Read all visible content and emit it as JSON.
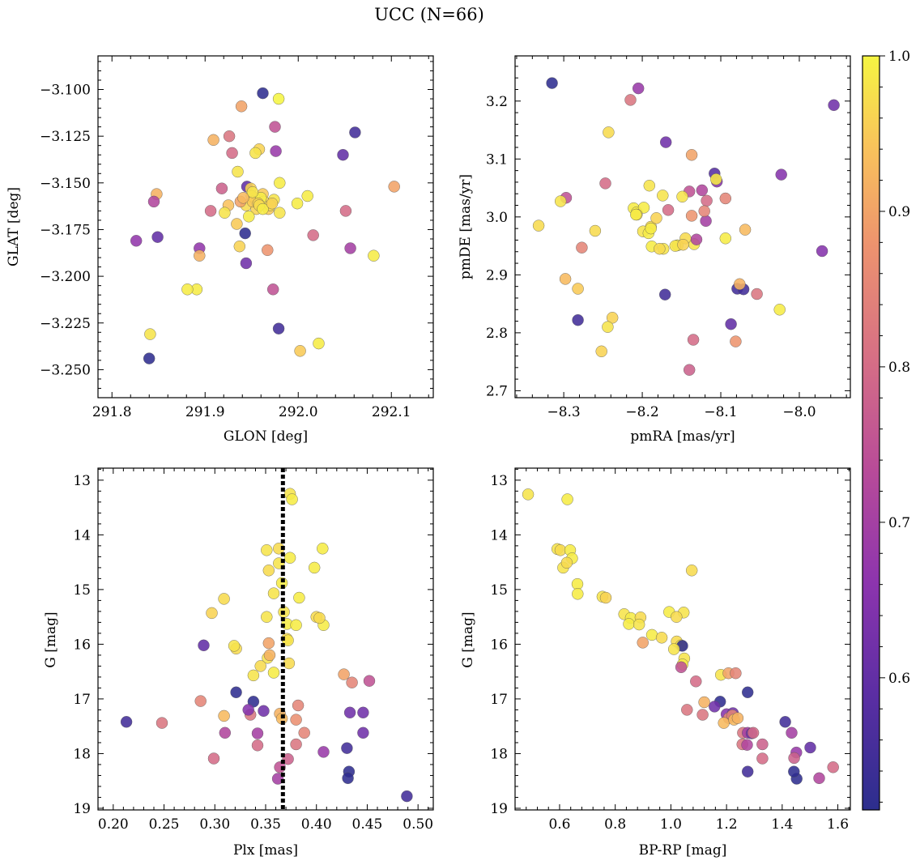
{
  "figure": {
    "title": "UCC (N=66)"
  },
  "colorbar": {
    "cmap": "plasma",
    "vmin": 0.515,
    "vmax": 1.0,
    "ticks": [
      0.6,
      0.7,
      0.8,
      0.9,
      1.0
    ],
    "tick_labels": [
      "0.6",
      "0.7",
      "0.8",
      "0.9",
      "1.0"
    ]
  },
  "chart_data": [
    {
      "type": "scatter",
      "id": "glon-glat",
      "xlabel": "GLON [deg]",
      "ylabel": "GLAT [deg]",
      "xlim": [
        291.785,
        292.145
      ],
      "ylim": [
        -3.265,
        -3.082
      ],
      "y_inverted": false,
      "xticks": [
        291.8,
        291.9,
        292.0,
        292.1
      ],
      "xtick_labels": [
        "291.8",
        "291.9",
        "292.0",
        "292.1"
      ],
      "yticks": [
        -3.1,
        -3.125,
        -3.15,
        -3.175,
        -3.2,
        -3.225,
        -3.25
      ],
      "ytick_labels": [
        "−3.100",
        "−3.125",
        "−3.150",
        "−3.175",
        "−3.200",
        "−3.225",
        "−3.250"
      ],
      "x": [
        291.962,
        291.979,
        291.939,
        291.975,
        291.909,
        291.926,
        291.976,
        291.929,
        291.958,
        291.954,
        291.935,
        291.98,
        291.918,
        291.962,
        291.945,
        292.048,
        292.061,
        291.949,
        292.01,
        291.848,
        291.845,
        291.953,
        291.963,
        291.944,
        291.925,
        291.938,
        291.955,
        291.968,
        291.974,
        291.999,
        292.103,
        291.97,
        291.906,
        291.947,
        292.051,
        291.98,
        291.826,
        291.849,
        291.894,
        291.937,
        291.894,
        291.967,
        292.016,
        292.056,
        291.943,
        291.944,
        291.891,
        292.081,
        291.973,
        291.881,
        291.841,
        292.022,
        292.002,
        291.84,
        291.979,
        291.95,
        291.951,
        291.96,
        291.951,
        291.921,
        291.957,
        291.958,
        291.941,
        291.962,
        291.972,
        291.934
      ],
      "y": [
        -3.102,
        -3.105,
        -3.109,
        -3.12,
        -3.127,
        -3.125,
        -3.133,
        -3.134,
        -3.132,
        -3.134,
        -3.144,
        -3.15,
        -3.153,
        -3.156,
        -3.152,
        -3.135,
        -3.123,
        -3.153,
        -3.157,
        -3.156,
        -3.16,
        -3.158,
        -3.16,
        -3.162,
        -3.162,
        -3.16,
        -3.164,
        -3.164,
        -3.159,
        -3.161,
        -3.152,
        -3.162,
        -3.165,
        -3.168,
        -3.165,
        -3.166,
        -3.181,
        -3.179,
        -3.185,
        -3.184,
        -3.189,
        -3.186,
        -3.178,
        -3.185,
        -3.177,
        -3.193,
        -3.207,
        -3.189,
        -3.207,
        -3.207,
        -3.231,
        -3.236,
        -3.24,
        -3.244,
        -3.228,
        -3.157,
        -3.16,
        -3.158,
        -3.155,
        -3.166,
        -3.161,
        -3.162,
        -3.158,
        -3.164,
        -3.161,
        -3.172
      ],
      "c": [
        0.52,
        1.0,
        0.9,
        0.75,
        0.92,
        0.82,
        0.68,
        0.8,
        0.96,
        0.98,
        0.98,
        0.99,
        0.78,
        0.95,
        0.6,
        0.6,
        0.55,
        0.96,
        0.99,
        0.92,
        0.72,
        0.98,
        0.97,
        0.97,
        0.94,
        0.9,
        0.96,
        0.95,
        0.98,
        0.99,
        0.9,
        0.97,
        0.8,
        0.99,
        0.8,
        0.98,
        0.67,
        0.6,
        0.67,
        0.96,
        0.92,
        0.88,
        0.8,
        0.7,
        0.52,
        0.62,
        0.99,
        0.99,
        0.75,
        0.99,
        0.98,
        0.99,
        0.95,
        0.52,
        0.55,
        0.97,
        0.95,
        0.99,
        0.98,
        0.98,
        0.96,
        0.97,
        0.93,
        0.99,
        0.96,
        0.95
      ]
    },
    {
      "type": "scatter",
      "id": "pm",
      "xlabel": "pmRA [mas/yr]",
      "ylabel": "pmDE [mas/yr]",
      "xlim": [
        -8.362,
        -7.935
      ],
      "ylim": [
        2.688,
        3.278
      ],
      "y_inverted": false,
      "xticks": [
        -8.3,
        -8.2,
        -8.1,
        -8.0
      ],
      "xtick_labels": [
        "−8.3",
        "−8.2",
        "−8.1",
        "−8.0"
      ],
      "yticks": [
        2.7,
        2.8,
        2.9,
        3.0,
        3.1,
        3.2
      ],
      "ytick_labels": [
        "2.7",
        "2.8",
        "2.9",
        "3.0",
        "3.1",
        "3.2"
      ],
      "x": [
        -8.315,
        -8.205,
        -8.215,
        -8.17,
        -8.243,
        -8.137,
        -7.956,
        -8.108,
        -8.105,
        -8.247,
        -8.124,
        -8.094,
        -8.023,
        -8.14,
        -8.118,
        -8.332,
        -8.297,
        -8.211,
        -8.207,
        -8.198,
        -8.174,
        -8.191,
        -8.189,
        -8.149,
        -8.199,
        -8.182,
        -8.207,
        -8.137,
        -8.119,
        -8.121,
        -8.155,
        -8.106,
        -8.188,
        -8.26,
        -8.134,
        -8.145,
        -8.173,
        -8.158,
        -8.192,
        -8.131,
        -8.277,
        -8.094,
        -8.069,
        -7.971,
        -8.079,
        -8.071,
        -8.298,
        -8.282,
        -8.304,
        -8.076,
        -8.054,
        -8.025,
        -8.171,
        -8.238,
        -8.244,
        -8.087,
        -8.282,
        -8.252,
        -8.135,
        -8.081,
        -8.14,
        -8.208,
        -8.189,
        -8.167,
        -8.178,
        -8.148
      ],
      "y": [
        3.231,
        3.222,
        3.202,
        3.129,
        3.146,
        3.107,
        3.193,
        3.075,
        3.061,
        3.058,
        3.046,
        3.032,
        3.073,
        3.044,
        3.028,
        2.985,
        3.033,
        3.015,
        3.008,
        3.016,
        3.037,
        3.054,
        2.983,
        3.035,
        2.975,
        2.998,
        3.004,
        3.002,
        2.993,
        3.01,
        2.951,
        3.065,
        2.949,
        2.976,
        2.953,
        2.963,
        2.945,
        2.95,
        2.972,
        2.961,
        2.947,
        2.963,
        2.978,
        2.941,
        2.876,
        2.875,
        2.893,
        2.876,
        3.027,
        2.884,
        2.867,
        2.84,
        2.866,
        2.826,
        2.81,
        2.815,
        2.822,
        2.768,
        2.788,
        2.785,
        2.736,
        3.004,
        2.98,
        3.012,
        2.945,
        2.952
      ],
      "c": [
        0.52,
        0.68,
        0.82,
        0.62,
        0.97,
        0.9,
        0.62,
        0.58,
        0.65,
        0.8,
        0.72,
        0.85,
        0.65,
        0.75,
        0.8,
        0.97,
        0.75,
        0.99,
        0.99,
        0.99,
        0.98,
        0.98,
        0.97,
        0.98,
        0.98,
        0.96,
        0.97,
        0.88,
        0.7,
        0.85,
        0.99,
        0.99,
        0.99,
        0.97,
        0.98,
        0.97,
        0.98,
        0.98,
        0.99,
        0.72,
        0.85,
        0.99,
        0.93,
        0.65,
        0.55,
        0.55,
        0.93,
        0.95,
        0.98,
        0.92,
        0.82,
        0.99,
        0.55,
        0.96,
        0.98,
        0.6,
        0.55,
        0.96,
        0.8,
        0.88,
        0.78,
        0.99,
        0.99,
        0.8,
        0.97,
        0.96
      ]
    },
    {
      "type": "scatter",
      "id": "plx-g",
      "xlabel": "Plx [mas]",
      "ylabel": "G [mag]",
      "xlim": [
        0.185,
        0.515
      ],
      "ylim": [
        12.78,
        19.03
      ],
      "y_inverted": true,
      "xticks": [
        0.2,
        0.25,
        0.3,
        0.35,
        0.4,
        0.45,
        0.5
      ],
      "xtick_labels": [
        "0.20",
        "0.25",
        "0.30",
        "0.35",
        "0.40",
        "0.45",
        "0.50"
      ],
      "yticks": [
        13,
        14,
        15,
        16,
        17,
        18,
        19
      ],
      "ytick_labels": [
        "13",
        "14",
        "15",
        "16",
        "17",
        "18",
        "19"
      ],
      "ref_line": {
        "x": 0.367,
        "style": "dotted",
        "color": "#000000"
      },
      "x": [
        0.374,
        0.376,
        0.351,
        0.363,
        0.374,
        0.406,
        0.363,
        0.353,
        0.366,
        0.398,
        0.309,
        0.368,
        0.297,
        0.358,
        0.371,
        0.4,
        0.383,
        0.351,
        0.371,
        0.38,
        0.372,
        0.407,
        0.403,
        0.289,
        0.321,
        0.353,
        0.319,
        0.352,
        0.345,
        0.358,
        0.338,
        0.427,
        0.435,
        0.452,
        0.321,
        0.382,
        0.338,
        0.286,
        0.433,
        0.364,
        0.446,
        0.213,
        0.248,
        0.309,
        0.335,
        0.366,
        0.38,
        0.333,
        0.388,
        0.31,
        0.342,
        0.38,
        0.342,
        0.43,
        0.446,
        0.407,
        0.299,
        0.372,
        0.364,
        0.362,
        0.432,
        0.431,
        0.489,
        0.348,
        0.373,
        0.354
      ],
      "y": [
        13.25,
        13.35,
        14.28,
        14.25,
        14.42,
        14.25,
        14.52,
        14.65,
        14.88,
        14.6,
        15.17,
        15.41,
        15.43,
        15.07,
        15.63,
        15.5,
        15.15,
        15.5,
        15.9,
        15.65,
        15.93,
        15.65,
        15.52,
        16.02,
        16.08,
        15.98,
        16.03,
        16.25,
        16.4,
        16.52,
        16.57,
        16.55,
        16.7,
        16.67,
        16.88,
        17.12,
        17.05,
        17.04,
        17.25,
        17.27,
        17.25,
        17.42,
        17.44,
        17.31,
        17.29,
        17.36,
        17.38,
        17.2,
        17.62,
        17.62,
        17.63,
        17.83,
        17.85,
        17.9,
        17.62,
        17.97,
        18.09,
        18.1,
        18.25,
        18.46,
        18.33,
        18.45,
        18.78,
        17.22,
        16.35,
        16.2
      ],
      "c": [
        0.98,
        0.99,
        0.98,
        0.97,
        0.99,
        0.99,
        0.98,
        0.97,
        0.99,
        0.99,
        0.97,
        0.98,
        0.96,
        0.98,
        0.99,
        0.97,
        0.99,
        0.98,
        0.97,
        0.99,
        0.98,
        0.99,
        0.97,
        0.6,
        0.97,
        0.9,
        0.98,
        0.98,
        0.97,
        0.99,
        0.98,
        0.9,
        0.85,
        0.75,
        0.52,
        0.85,
        0.52,
        0.85,
        0.62,
        0.92,
        0.62,
        0.55,
        0.82,
        0.93,
        0.82,
        0.93,
        0.87,
        0.65,
        0.85,
        0.72,
        0.7,
        0.82,
        0.8,
        0.55,
        0.62,
        0.68,
        0.8,
        0.78,
        0.75,
        0.7,
        0.52,
        0.52,
        0.55,
        0.62,
        0.97,
        0.92
      ]
    },
    {
      "type": "scatter",
      "id": "bprp-g",
      "xlabel": "BP-RP [mag]",
      "ylabel": "G [mag]",
      "xlim": [
        0.44,
        1.645
      ],
      "ylim": [
        12.78,
        19.03
      ],
      "y_inverted": true,
      "xticks": [
        0.6,
        0.8,
        1.0,
        1.2,
        1.4,
        1.6
      ],
      "xtick_labels": [
        "0.6",
        "0.8",
        "1.0",
        "1.2",
        "1.4",
        "1.6"
      ],
      "yticks": [
        13,
        14,
        15,
        16,
        17,
        18,
        19
      ],
      "ytick_labels": [
        "13",
        "14",
        "15",
        "16",
        "17",
        "18",
        "19"
      ],
      "x": [
        0.487,
        0.628,
        0.592,
        0.603,
        0.638,
        0.645,
        0.613,
        0.626,
        0.664,
        0.665,
        1.075,
        0.754,
        0.766,
        0.832,
        0.856,
        0.891,
        0.994,
        1.046,
        1.02,
        0.849,
        0.886,
        0.932,
        0.967,
        0.899,
        1.021,
        1.036,
        1.041,
        1.011,
        1.048,
        1.042,
        1.037,
        1.18,
        1.207,
        1.233,
        1.276,
        1.09,
        1.177,
        1.12,
        1.157,
        1.2,
        1.208,
        1.223,
        1.221,
        1.259,
        1.276,
        1.29,
        1.19,
        1.257,
        1.274,
        1.296,
        1.329,
        1.411,
        1.434,
        1.451,
        1.443,
        1.501,
        1.583,
        1.533,
        1.329,
        1.452,
        1.442,
        1.276,
        1.227,
        1.24,
        1.114,
        1.058
      ],
      "y": [
        13.26,
        13.35,
        14.26,
        14.28,
        14.28,
        14.43,
        14.6,
        14.51,
        14.9,
        15.08,
        14.65,
        15.13,
        15.15,
        15.45,
        15.52,
        15.51,
        15.41,
        15.42,
        15.5,
        15.63,
        15.64,
        15.83,
        15.88,
        15.97,
        15.95,
        16.02,
        16.03,
        16.09,
        16.26,
        16.37,
        16.42,
        16.56,
        16.53,
        16.53,
        16.88,
        16.68,
        17.05,
        17.06,
        17.14,
        17.28,
        17.35,
        17.26,
        17.3,
        17.62,
        17.62,
        17.63,
        17.44,
        17.83,
        17.84,
        17.62,
        17.83,
        17.42,
        17.62,
        17.98,
        18.08,
        17.89,
        18.25,
        18.45,
        18.09,
        18.46,
        18.33,
        18.33,
        17.38,
        17.35,
        17.29,
        17.2
      ],
      "c": [
        0.98,
        0.99,
        0.98,
        0.97,
        0.99,
        0.99,
        0.98,
        0.97,
        0.99,
        0.99,
        0.97,
        0.98,
        0.96,
        0.98,
        0.99,
        0.97,
        0.99,
        0.98,
        0.97,
        0.99,
        0.98,
        0.99,
        0.97,
        0.9,
        0.97,
        0.98,
        0.52,
        0.98,
        0.98,
        0.99,
        0.75,
        0.98,
        0.9,
        0.85,
        0.52,
        0.8,
        0.52,
        0.92,
        0.62,
        0.65,
        0.85,
        0.62,
        0.85,
        0.82,
        0.7,
        0.62,
        0.93,
        0.82,
        0.72,
        0.8,
        0.78,
        0.55,
        0.7,
        0.68,
        0.78,
        0.6,
        0.8,
        0.72,
        0.8,
        0.52,
        0.52,
        0.55,
        0.93,
        0.92,
        0.82,
        0.82
      ]
    }
  ]
}
